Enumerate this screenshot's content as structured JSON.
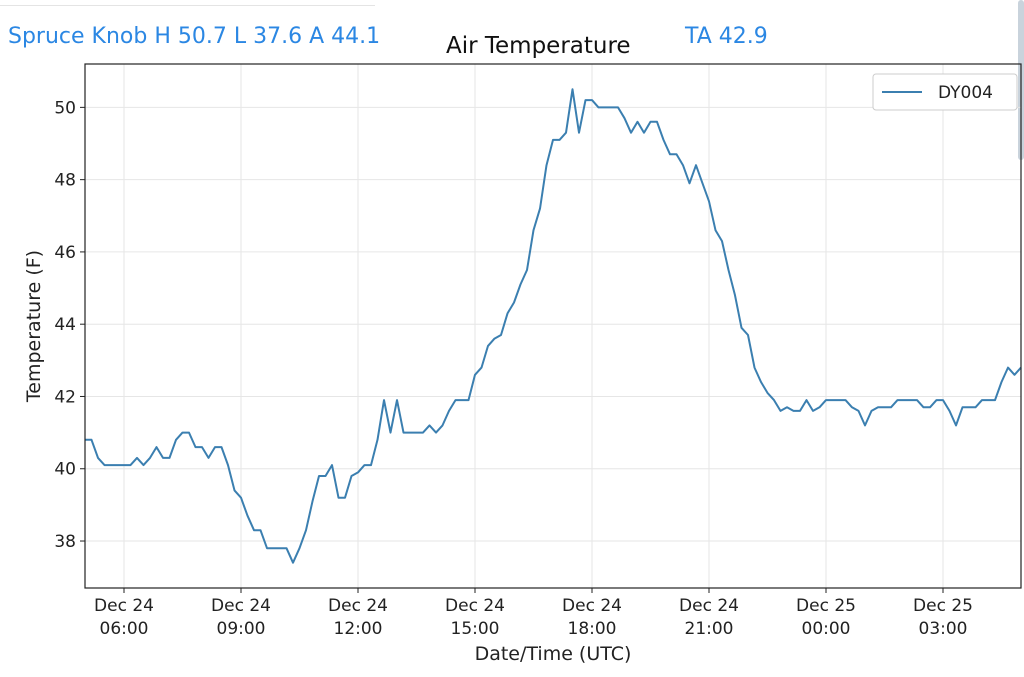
{
  "header": {
    "station_summary": "Spruce Knob H 50.7 L 37.6 A 44.1",
    "ta": "TA 42.9"
  },
  "colors": {
    "header_text": "#2b87e3",
    "series": "#3b7fb0"
  },
  "chart_data": {
    "type": "line",
    "title": "Air Temperature",
    "xlabel": "Date/Time (UTC)",
    "ylabel": "Temperature (F)",
    "ylim": [
      36.7,
      51.2
    ],
    "xlim_hours_from_dec24_0000": [
      5.0,
      29.0
    ],
    "grid": true,
    "legend_position": "top-right",
    "y_ticks": [
      "38",
      "40",
      "42",
      "44",
      "46",
      "48",
      "50"
    ],
    "x_ticks": [
      {
        "hours": 6,
        "line1": "Dec 24",
        "line2": "06:00"
      },
      {
        "hours": 9,
        "line1": "Dec 24",
        "line2": "09:00"
      },
      {
        "hours": 12,
        "line1": "Dec 24",
        "line2": "12:00"
      },
      {
        "hours": 15,
        "line1": "Dec 24",
        "line2": "15:00"
      },
      {
        "hours": 18,
        "line1": "Dec 24",
        "line2": "18:00"
      },
      {
        "hours": 21,
        "line1": "Dec 24",
        "line2": "21:00"
      },
      {
        "hours": 24,
        "line1": "Dec 25",
        "line2": "00:00"
      },
      {
        "hours": 27,
        "line1": "Dec 25",
        "line2": "03:00"
      }
    ],
    "series": [
      {
        "name": "DY004",
        "start_hours": 5.0,
        "interval_minutes": 10,
        "values": [
          40.8,
          40.8,
          40.3,
          40.1,
          40.1,
          40.1,
          40.1,
          40.1,
          40.3,
          40.1,
          40.3,
          40.6,
          40.3,
          40.3,
          40.8,
          41.0,
          41.0,
          40.6,
          40.6,
          40.3,
          40.6,
          40.6,
          40.1,
          39.4,
          39.2,
          38.7,
          38.3,
          38.3,
          37.8,
          37.8,
          37.8,
          37.8,
          37.4,
          37.8,
          38.3,
          39.1,
          39.8,
          39.8,
          40.1,
          39.2,
          39.2,
          39.8,
          39.9,
          40.1,
          40.1,
          40.8,
          41.9,
          41.0,
          41.9,
          41.0,
          41.0,
          41.0,
          41.0,
          41.2,
          41.0,
          41.2,
          41.6,
          41.9,
          41.9,
          41.9,
          42.6,
          42.8,
          43.4,
          43.6,
          43.7,
          44.3,
          44.6,
          45.1,
          45.5,
          46.6,
          47.2,
          48.4,
          49.1,
          49.1,
          49.3,
          50.5,
          49.3,
          50.2,
          50.2,
          50.0,
          50.0,
          50.0,
          50.0,
          49.7,
          49.3,
          49.6,
          49.3,
          49.6,
          49.6,
          49.1,
          48.7,
          48.7,
          48.4,
          47.9,
          48.4,
          47.9,
          47.4,
          46.6,
          46.3,
          45.5,
          44.8,
          43.9,
          43.7,
          42.8,
          42.4,
          42.1,
          41.9,
          41.6,
          41.7,
          41.6,
          41.6,
          41.9,
          41.6,
          41.7,
          41.9,
          41.9,
          41.9,
          41.9,
          41.7,
          41.6,
          41.2,
          41.6,
          41.7,
          41.7,
          41.7,
          41.9,
          41.9,
          41.9,
          41.9,
          41.7,
          41.7,
          41.9,
          41.9,
          41.6,
          41.2,
          41.7,
          41.7,
          41.7,
          41.9,
          41.9,
          41.9,
          42.4,
          42.8,
          42.6,
          42.8
        ]
      }
    ]
  }
}
